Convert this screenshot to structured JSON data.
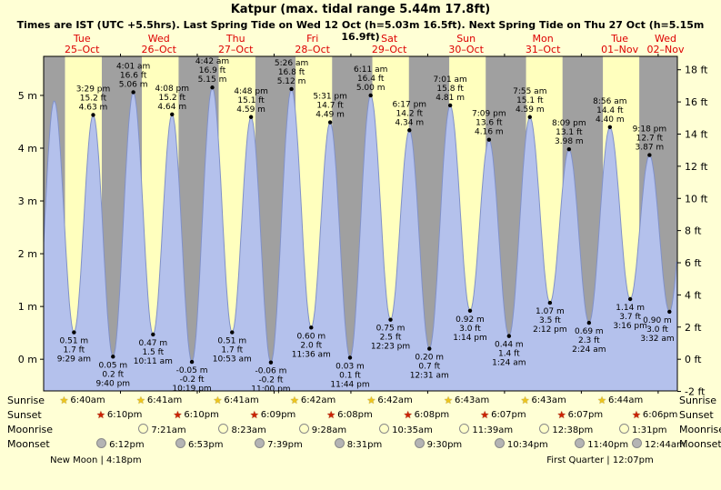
{
  "header": {
    "title": "Katpur (max. tidal range 5.44m 17.8ft)",
    "subtitle": "Times are IST (UTC +5.5hrs). Last Spring Tide on Wed 12 Oct (h=5.03m 16.5ft). Next Spring Tide on Thu 27 Oct (h=5.15m 16.9ft)"
  },
  "chart_data": {
    "type": "area",
    "title": "Katpur tide height curve",
    "x_unit": "hours from Tue 25-Oct 00:00 IST",
    "xlim": [
      0,
      198
    ],
    "ylim_m": [
      -0.6,
      5.74
    ],
    "y_left_unit": "m",
    "y_right_unit": "ft",
    "left_ticks": [
      "0 m",
      "1 m",
      "2 m",
      "3 m",
      "4 m",
      "5 m"
    ],
    "right_ticks": [
      "-2 ft",
      "0 ft",
      "2 ft",
      "4 ft",
      "6 ft",
      "8 ft",
      "10 ft",
      "12 ft",
      "14 ft",
      "16 ft",
      "18 ft"
    ],
    "days": [
      {
        "dow": "Tue",
        "date": "25–Oct"
      },
      {
        "dow": "Wed",
        "date": "26–Oct"
      },
      {
        "dow": "Thu",
        "date": "27–Oct"
      },
      {
        "dow": "Fri",
        "date": "28–Oct"
      },
      {
        "dow": "Sat",
        "date": "29–Oct"
      },
      {
        "dow": "Sun",
        "date": "30–Oct"
      },
      {
        "dow": "Mon",
        "date": "31–Oct"
      },
      {
        "dow": "Tue",
        "date": "01–Nov"
      },
      {
        "dow": "Wed",
        "date": "02–Nov"
      }
    ],
    "extremes": [
      {
        "t": -2.8,
        "m": 0.1,
        "kind": "low"
      },
      {
        "t": 3.3,
        "m": 4.9,
        "kind": "high"
      },
      {
        "t": 9.48,
        "m": 0.51,
        "kind": "low",
        "labels": [
          "0.51 m",
          "1.7 ft",
          "9:29 am"
        ]
      },
      {
        "t": 15.48,
        "m": 4.63,
        "kind": "high",
        "labels": [
          "3:29 pm",
          "15.2 ft",
          "4.63 m"
        ]
      },
      {
        "t": 21.67,
        "m": 0.05,
        "kind": "low",
        "labels": [
          "0.05 m",
          "0.2 ft",
          "9:40 pm"
        ]
      },
      {
        "t": 28.02,
        "m": 5.06,
        "kind": "high",
        "labels": [
          "4:01 am",
          "16.6 ft",
          "5.06 m"
        ]
      },
      {
        "t": 34.18,
        "m": 0.47,
        "kind": "low",
        "labels": [
          "0.47 m",
          "1.5 ft",
          "10:11 am"
        ]
      },
      {
        "t": 40.13,
        "m": 4.64,
        "kind": "high",
        "labels": [
          "4:08 pm",
          "15.2 ft",
          "4.64 m"
        ]
      },
      {
        "t": 46.32,
        "m": -0.05,
        "kind": "low",
        "labels": [
          "-0.05 m",
          "-0.2 ft",
          "10:19 pm"
        ]
      },
      {
        "t": 52.7,
        "m": 5.15,
        "kind": "high",
        "labels": [
          "4:42 am",
          "16.9 ft",
          "5.15 m"
        ]
      },
      {
        "t": 58.88,
        "m": 0.51,
        "kind": "low",
        "labels": [
          "0.51 m",
          "1.7 ft",
          "10:53 am"
        ]
      },
      {
        "t": 64.8,
        "m": 4.59,
        "kind": "high",
        "labels": [
          "4:48 pm",
          "15.1 ft",
          "4.59 m"
        ]
      },
      {
        "t": 71.0,
        "m": -0.06,
        "kind": "low",
        "labels": [
          "-0.06 m",
          "-0.2 ft",
          "11:00 pm"
        ]
      },
      {
        "t": 77.43,
        "m": 5.12,
        "kind": "high",
        "labels": [
          "5:26 am",
          "16.8 ft",
          "5.12 m"
        ]
      },
      {
        "t": 83.6,
        "m": 0.6,
        "kind": "low",
        "labels": [
          "0.60 m",
          "2.0 ft",
          "11:36 am"
        ]
      },
      {
        "t": 89.52,
        "m": 4.49,
        "kind": "high",
        "labels": [
          "5:31 pm",
          "14.7 ft",
          "4.49 m"
        ]
      },
      {
        "t": 95.73,
        "m": 0.03,
        "kind": "low",
        "labels": [
          "0.03 m",
          "0.1 ft",
          "11:44 pm"
        ]
      },
      {
        "t": 102.18,
        "m": 5.0,
        "kind": "high",
        "labels": [
          "6:11 am",
          "16.4 ft",
          "5.00 m"
        ]
      },
      {
        "t": 108.38,
        "m": 0.75,
        "kind": "low",
        "labels": [
          "0.75 m",
          "2.5 ft",
          "12:23 pm"
        ]
      },
      {
        "t": 114.28,
        "m": 4.34,
        "kind": "high",
        "labels": [
          "6:17 pm",
          "14.2 ft",
          "4.34 m"
        ]
      },
      {
        "t": 120.52,
        "m": 0.2,
        "kind": "low",
        "labels": [
          "0.20 m",
          "0.7 ft",
          "12:31 am"
        ]
      },
      {
        "t": 127.02,
        "m": 4.81,
        "kind": "high",
        "labels": [
          "7:01 am",
          "15.8 ft",
          "4.81 m"
        ]
      },
      {
        "t": 133.23,
        "m": 0.92,
        "kind": "low",
        "labels": [
          "0.92 m",
          "3.0 ft",
          "1:14 pm"
        ]
      },
      {
        "t": 139.15,
        "m": 4.16,
        "kind": "high",
        "labels": [
          "7:09 pm",
          "13.6 ft",
          "4.16 m"
        ]
      },
      {
        "t": 145.4,
        "m": 0.44,
        "kind": "low",
        "labels": [
          "0.44 m",
          "1.4 ft",
          "1:24 am"
        ]
      },
      {
        "t": 151.92,
        "m": 4.59,
        "kind": "high",
        "labels": [
          "7:55 am",
          "15.1 ft",
          "4.59 m"
        ]
      },
      {
        "t": 158.2,
        "m": 1.07,
        "kind": "low",
        "labels": [
          "1.07 m",
          "3.5 ft",
          "2:12 pm"
        ]
      },
      {
        "t": 164.15,
        "m": 3.98,
        "kind": "high",
        "labels": [
          "8:09 pm",
          "13.1 ft",
          "3.98 m"
        ]
      },
      {
        "t": 170.4,
        "m": 0.69,
        "kind": "low",
        "labels": [
          "0.69 m",
          "2.3 ft",
          "2:24 am"
        ]
      },
      {
        "t": 176.93,
        "m": 4.4,
        "kind": "high",
        "labels": [
          "8:56 am",
          "14.4 ft",
          "4.40 m"
        ]
      },
      {
        "t": 183.27,
        "m": 1.14,
        "kind": "low",
        "labels": [
          "1.14 m",
          "3.7 ft",
          "3:16 pm"
        ]
      },
      {
        "t": 189.3,
        "m": 3.87,
        "kind": "high",
        "labels": [
          "9:18 pm",
          "12.7 ft",
          "3.87 m"
        ]
      },
      {
        "t": 195.53,
        "m": 0.9,
        "kind": "low",
        "labels": [
          "0.90 m",
          "3.0 ft",
          "3:32 am"
        ]
      },
      {
        "t": 201.8,
        "m": 4.3,
        "kind": "high"
      }
    ]
  },
  "events": {
    "row_labels": [
      "Sunrise",
      "Sunset",
      "Moonrise",
      "Moonset"
    ],
    "sunrise": [
      {
        "t": 6.67,
        "label": "6:40am"
      },
      {
        "t": 30.68,
        "label": "6:41am"
      },
      {
        "t": 54.68,
        "label": "6:41am"
      },
      {
        "t": 78.7,
        "label": "6:42am"
      },
      {
        "t": 102.7,
        "label": "6:42am"
      },
      {
        "t": 126.72,
        "label": "6:43am"
      },
      {
        "t": 150.72,
        "label": "6:43am"
      },
      {
        "t": 174.73,
        "label": "6:44am"
      }
    ],
    "sunset": [
      {
        "t": 18.17,
        "label": "6:10pm"
      },
      {
        "t": 42.17,
        "label": "6:10pm"
      },
      {
        "t": 66.15,
        "label": "6:09pm"
      },
      {
        "t": 90.13,
        "label": "6:08pm"
      },
      {
        "t": 114.13,
        "label": "6:08pm"
      },
      {
        "t": 138.12,
        "label": "6:07pm"
      },
      {
        "t": 162.12,
        "label": "6:07pm"
      },
      {
        "t": 186.1,
        "label": "6:06pm"
      }
    ],
    "moonrise": [
      {
        "t": 31.35,
        "label": "7:21am"
      },
      {
        "t": 56.38,
        "label": "8:23am"
      },
      {
        "t": 81.47,
        "label": "9:28am"
      },
      {
        "t": 106.58,
        "label": "10:35am"
      },
      {
        "t": 131.65,
        "label": "11:39am"
      },
      {
        "t": 156.63,
        "label": "12:38pm"
      },
      {
        "t": 181.52,
        "label": "1:31pm"
      }
    ],
    "moonset": [
      {
        "t": 18.2,
        "label": "6:12pm"
      },
      {
        "t": 42.88,
        "label": "6:53pm"
      },
      {
        "t": 67.65,
        "label": "7:39pm"
      },
      {
        "t": 92.52,
        "label": "8:31pm"
      },
      {
        "t": 117.5,
        "label": "9:30pm"
      },
      {
        "t": 142.57,
        "label": "10:34pm"
      },
      {
        "t": 167.67,
        "label": "11:40pm"
      },
      {
        "t": 192.73,
        "label": "12:44am"
      }
    ],
    "phases": [
      {
        "t": 16.3,
        "label": "New Moon | 4:18pm"
      },
      {
        "t": 180.12,
        "label": "First Quarter | 12:07pm"
      }
    ]
  },
  "colors": {
    "page_bg": "#ffffd5",
    "day_band": "#ffffbe",
    "night_band": "#a0a0a0",
    "tide_fill": "#b4c1ec",
    "tide_stroke": "#8191c8",
    "day_label_red": "#dd0000",
    "sunrise_star": "#edc51d",
    "sunset_star": "#cc2200",
    "moonrise_fill": "#ffffc8",
    "moonset_fill": "#b4b4b4",
    "moon_border": "#8a8a8a"
  }
}
